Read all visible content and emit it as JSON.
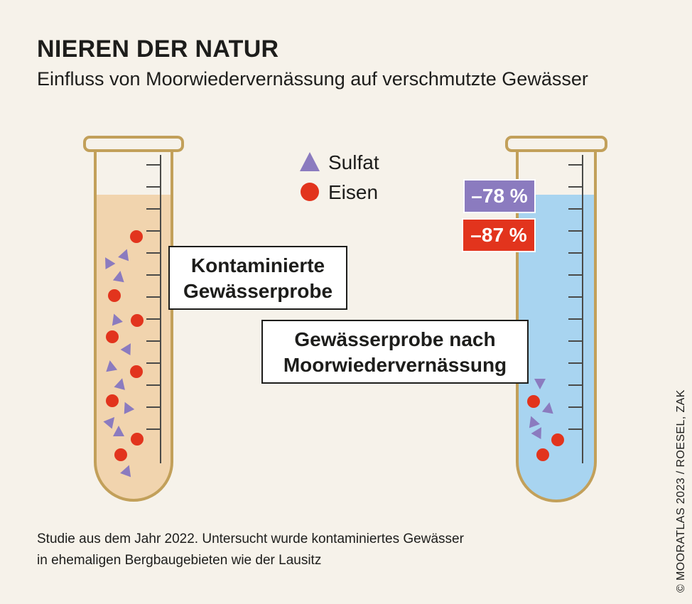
{
  "header": {
    "title": "NIEREN DER NATUR",
    "subtitle": "Einfluss von Moorwiedervernässung auf verschmutzte Gewässer"
  },
  "legend": {
    "sulfat_label": "Sulfat",
    "eisen_label": "Eisen"
  },
  "colors": {
    "sulfat": "#8b7bbf",
    "eisen": "#e2341d",
    "tube_outline": "#c2a05a",
    "contaminated_liquid": "#f1d4ae",
    "clean_liquid": "#a8d4f0",
    "background": "#f6f2ea"
  },
  "samples": {
    "contaminated": {
      "label_line1": "Kontaminierte",
      "label_line2": "Gewässerprobe"
    },
    "rewetted": {
      "label_line1": "Gewässerprobe nach",
      "label_line2": "Moorwiedervernässung",
      "sulfat_change": "–78 %",
      "eisen_change": "–87 %"
    }
  },
  "footnote": {
    "line1": "Studie aus dem Jahr 2022. Untersucht wurde kontaminiertes Gewässer",
    "line2": "in ehemaligen Bergbaugebieten wie der Lausitz"
  },
  "credit": "© MOORATLAS 2023 / ROESEL, ZAK"
}
